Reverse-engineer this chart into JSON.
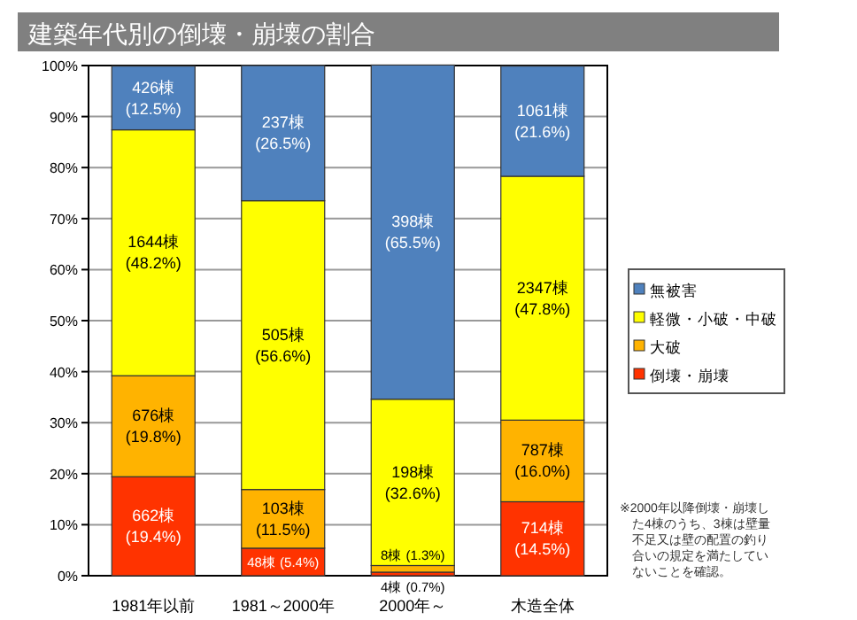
{
  "chart_data": {
    "type": "bar",
    "stacked": true,
    "title": "建築年代別の倒壊・崩壊の割合",
    "categories": [
      "1981年以前",
      "1981～2000年",
      "2000年～",
      "木造全体"
    ],
    "series": [
      {
        "name": "倒壊・崩壊",
        "color": "#ff3300",
        "values": [
          19.4,
          5.4,
          0.7,
          14.5
        ],
        "value_labels": [
          "662棟\n(19.4%)",
          "48棟 (5.4%)",
          "4棟 (0.7%)",
          "714棟\n(14.5%)"
        ]
      },
      {
        "name": "大破",
        "color": "#ffb300",
        "values": [
          19.8,
          11.5,
          1.3,
          16.0
        ],
        "value_labels": [
          "676棟\n(19.8%)",
          "103棟\n(11.5%)",
          "8棟 (1.3%)",
          "787棟\n(16.0%)"
        ]
      },
      {
        "name": "軽微・小破・中破",
        "color": "#ffff00",
        "values": [
          48.2,
          56.6,
          32.6,
          47.8
        ],
        "value_labels": [
          "1644棟\n(48.2%)",
          "505棟\n(56.6%)",
          "198棟\n(32.6%)",
          "2347棟\n(47.8%)"
        ]
      },
      {
        "name": "無被害",
        "color": "#4f81bd",
        "values": [
          12.5,
          26.5,
          65.5,
          21.6
        ],
        "value_labels": [
          "426棟\n(12.5%)",
          "237棟\n(26.5%)",
          "398棟\n(65.5%)",
          "1061棟\n(21.6%)"
        ]
      }
    ],
    "ylim": [
      0,
      100
    ],
    "yticks": [
      {
        "value": 0,
        "label": "0%"
      },
      {
        "value": 10,
        "label": "10%"
      },
      {
        "value": 20,
        "label": "20%"
      },
      {
        "value": 30,
        "label": "30%"
      },
      {
        "value": 40,
        "label": "40%"
      },
      {
        "value": 50,
        "label": "50%"
      },
      {
        "value": 60,
        "label": "60%"
      },
      {
        "value": 70,
        "label": "70%"
      },
      {
        "value": 80,
        "label": "80%"
      },
      {
        "value": 90,
        "label": "90%"
      },
      {
        "value": 100,
        "label": "100%"
      }
    ],
    "grid": "y",
    "legend": "right",
    "annotations": [
      "※2000年以降倒壊・崩壊した4棟のうち、3棟は壁量不足又は壁の配置の釣り合いの規定を満たしていないことを確認。"
    ]
  }
}
